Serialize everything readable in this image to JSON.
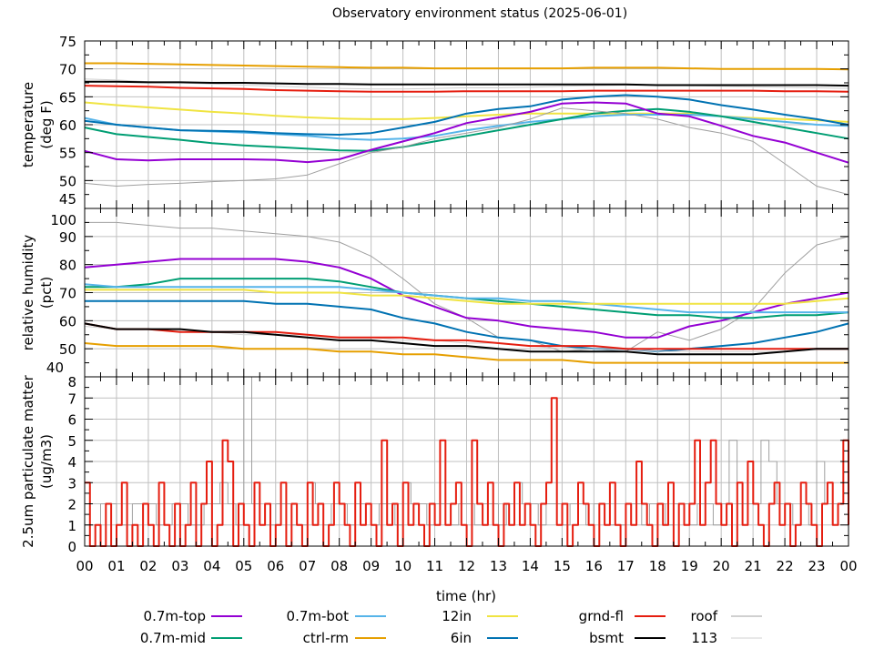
{
  "chart_data": [
    {
      "type": "line",
      "title": "Observatory environment status (2025-06-01)",
      "ylabel": [
        "temperature",
        "(deg F)"
      ],
      "ylim": [
        45,
        75
      ],
      "yticks": [
        45,
        50,
        55,
        60,
        65,
        70,
        75
      ],
      "grid": true,
      "x": [
        0,
        1,
        2,
        3,
        4,
        5,
        6,
        7,
        8,
        9,
        10,
        11,
        12,
        13,
        14,
        15,
        16,
        17,
        18,
        19,
        20,
        21,
        22,
        23,
        24
      ],
      "series": [
        {
          "name": "ctrl-rm",
          "color": "#e69f00",
          "values": [
            71,
            71,
            70.9,
            70.8,
            70.7,
            70.6,
            70.5,
            70.4,
            70.3,
            70.2,
            70.2,
            70.1,
            70.1,
            70.1,
            70.1,
            70.1,
            70.2,
            70.2,
            70.2,
            70.1,
            70,
            70,
            70,
            70,
            69.9
          ]
        },
        {
          "name": "113",
          "color": "#d0d0d0",
          "values": [
            68.2,
            68,
            67.7,
            67.5,
            67.3,
            67.1,
            66.9,
            66.7,
            66.5,
            66.4,
            66.4,
            66.5,
            66.6,
            66.6,
            66.7,
            66.9,
            67,
            67.1,
            67.1,
            67,
            66.9,
            66.8,
            66.7,
            66.6,
            66.5
          ]
        },
        {
          "name": "bsmt",
          "color": "#000000",
          "values": [
            67.7,
            67.7,
            67.6,
            67.6,
            67.5,
            67.5,
            67.4,
            67.3,
            67.3,
            67.2,
            67.2,
            67.2,
            67.2,
            67.2,
            67.2,
            67.2,
            67.2,
            67.2,
            67.1,
            67.1,
            67.1,
            67.1,
            67.1,
            67.1,
            67
          ]
        },
        {
          "name": "grnd-fl",
          "color": "#e51e10",
          "values": [
            67,
            66.9,
            66.8,
            66.6,
            66.5,
            66.4,
            66.2,
            66.1,
            66,
            65.9,
            65.9,
            65.9,
            66,
            66,
            66,
            66,
            66.1,
            66.1,
            66.1,
            66.1,
            66.1,
            66.1,
            66,
            66,
            65.9
          ]
        },
        {
          "name": "12in",
          "color": "#f0e442",
          "values": [
            64,
            63.5,
            63.1,
            62.7,
            62.3,
            62,
            61.6,
            61.3,
            61.1,
            61,
            61,
            61.2,
            61.5,
            61.8,
            62,
            62,
            62,
            62,
            62,
            62,
            61.5,
            61.2,
            61,
            60.8,
            60.5
          ]
        },
        {
          "name": "0.7m-bot",
          "color": "#56b4e9",
          "values": [
            61.2,
            60,
            59.5,
            59,
            58.8,
            58.6,
            58.3,
            58,
            57.5,
            57.3,
            57.5,
            58,
            59,
            59.8,
            60.5,
            61,
            61.5,
            61.8,
            61.8,
            61.8,
            61.5,
            61,
            60.5,
            60,
            59.8
          ]
        },
        {
          "name": "6in",
          "color": "#0072b2",
          "values": [
            60.7,
            60,
            59.5,
            59,
            58.9,
            58.8,
            58.5,
            58.3,
            58.2,
            58.5,
            59.5,
            60.5,
            62,
            62.8,
            63.3,
            64.5,
            65,
            65.3,
            65,
            64.5,
            63.5,
            62.7,
            61.8,
            61,
            60
          ]
        },
        {
          "name": "0.7m-mid",
          "color": "#009e73",
          "values": [
            59.5,
            58.3,
            57.8,
            57.3,
            56.7,
            56.3,
            56,
            55.7,
            55.4,
            55.3,
            56,
            57,
            58,
            59,
            60,
            61,
            62,
            62.5,
            62.8,
            62.3,
            61.5,
            60.5,
            59.5,
            58.5,
            57.5
          ]
        },
        {
          "name": "0.7m-top",
          "color": "#9400d3",
          "values": [
            55.3,
            53.8,
            53.6,
            53.8,
            53.8,
            53.8,
            53.7,
            53.3,
            53.8,
            55.5,
            57,
            58.5,
            60.3,
            61.3,
            62.3,
            63.8,
            64,
            63.8,
            62,
            61.5,
            59.8,
            58,
            56.8,
            55,
            53.2
          ]
        },
        {
          "name": "roof",
          "color": "#a0a0a0",
          "values": [
            49.5,
            49,
            49.3,
            49.5,
            49.8,
            50,
            50.3,
            51,
            53,
            55,
            56,
            57.5,
            58.5,
            59.5,
            61,
            63,
            62.5,
            62,
            61,
            59.5,
            58.5,
            57,
            53,
            49,
            47.5
          ]
        }
      ]
    },
    {
      "type": "line",
      "ylabel": [
        "relative humidity",
        "(pct)"
      ],
      "ylim": [
        40,
        100
      ],
      "yticks": [
        40,
        50,
        60,
        70,
        80,
        90,
        100
      ],
      "grid": true,
      "x": [
        0,
        1,
        2,
        3,
        4,
        5,
        6,
        7,
        8,
        9,
        10,
        11,
        12,
        13,
        14,
        15,
        16,
        17,
        18,
        19,
        20,
        21,
        22,
        23,
        24
      ],
      "series": [
        {
          "name": "roof",
          "color": "#a0a0a0",
          "values": [
            95,
            95,
            94,
            93,
            93,
            92,
            91,
            90,
            88,
            83,
            75,
            66,
            61,
            54,
            53,
            49,
            50,
            49,
            56,
            53,
            57,
            64,
            77,
            87,
            90
          ]
        },
        {
          "name": "0.7m-top",
          "color": "#9400d3",
          "values": [
            79,
            80,
            81,
            82,
            82,
            82,
            82,
            81,
            79,
            75,
            69,
            65,
            61,
            60,
            58,
            57,
            56,
            54,
            54,
            58,
            60,
            63,
            66,
            68,
            70
          ]
        },
        {
          "name": "0.7m-mid",
          "color": "#009e73",
          "values": [
            72,
            72,
            73,
            75,
            75,
            75,
            75,
            75,
            74,
            72,
            70,
            69,
            68,
            67,
            66,
            65,
            64,
            63,
            62,
            62,
            61,
            61,
            62,
            62,
            63
          ]
        },
        {
          "name": "0.7m-bot",
          "color": "#56b4e9",
          "values": [
            73,
            72,
            72,
            72,
            72,
            72,
            72,
            72,
            72,
            71,
            70,
            69,
            68,
            68,
            67,
            67,
            66,
            65,
            64,
            63,
            63,
            63,
            63,
            63,
            63
          ]
        },
        {
          "name": "12in",
          "color": "#f0e442",
          "values": [
            71,
            71,
            71,
            71,
            71,
            71,
            70,
            70,
            70,
            69,
            69,
            68,
            67,
            66,
            66,
            66,
            66,
            66,
            66,
            66,
            66,
            66,
            66,
            67,
            68
          ]
        },
        {
          "name": "6in",
          "color": "#0072b2",
          "values": [
            67,
            67,
            67,
            67,
            67,
            67,
            66,
            66,
            65,
            64,
            61,
            59,
            56,
            54,
            53,
            51,
            50,
            50,
            49,
            50,
            51,
            52,
            54,
            56,
            59
          ]
        },
        {
          "name": "113",
          "color": "#d0d0d0",
          "values": [
            58,
            57,
            57,
            56,
            56,
            55,
            55,
            55,
            54,
            54,
            53,
            53,
            52,
            52,
            51,
            50,
            50,
            50,
            49,
            49,
            49,
            49,
            49,
            50,
            50
          ]
        },
        {
          "name": "grnd-fl",
          "color": "#e51e10",
          "values": [
            59,
            57,
            57,
            56,
            56,
            56,
            56,
            55,
            54,
            54,
            54,
            53,
            53,
            52,
            51,
            51,
            51,
            50,
            50,
            50,
            50,
            50,
            50,
            50,
            50
          ]
        },
        {
          "name": "bsmt",
          "color": "#000000",
          "values": [
            59,
            57,
            57,
            57,
            56,
            56,
            55,
            54,
            53,
            53,
            52,
            51,
            51,
            50,
            49,
            49,
            49,
            49,
            48,
            48,
            48,
            48,
            49,
            50,
            50
          ]
        },
        {
          "name": "ctrl-rm",
          "color": "#e69f00",
          "values": [
            52,
            51,
            51,
            51,
            51,
            50,
            50,
            50,
            49,
            49,
            48,
            48,
            47,
            46,
            46,
            46,
            45,
            45,
            45,
            45,
            45,
            45,
            45,
            45,
            45
          ]
        }
      ]
    },
    {
      "type": "line",
      "ylabel": [
        "2.5um particulate matter",
        "(ug/m3)"
      ],
      "ylim": [
        0,
        8
      ],
      "yticks": [
        0,
        1,
        2,
        3,
        4,
        5,
        6,
        7,
        8
      ],
      "grid": true,
      "series": [
        {
          "name": "roof",
          "color": "#a0a0a0",
          "x_step_hr": 0.25,
          "values": [
            1,
            1,
            2,
            2,
            1,
            1,
            2,
            2,
            2,
            1,
            1,
            2,
            2,
            1,
            1,
            2,
            2,
            3,
            2,
            1,
            8,
            2,
            1,
            1,
            2,
            2,
            1,
            1,
            3,
            2,
            1,
            2,
            2,
            1,
            2,
            2,
            1,
            2,
            2,
            1,
            3,
            2,
            2,
            1,
            2,
            2,
            1,
            2,
            2,
            1,
            2,
            2,
            1,
            2,
            3,
            2,
            2,
            1,
            2,
            2,
            1,
            2,
            2,
            1,
            2,
            2,
            1,
            1,
            2,
            2,
            1,
            2,
            2,
            1,
            2,
            2,
            1,
            2,
            2,
            1,
            2,
            5,
            2,
            2,
            2,
            5,
            4,
            2,
            2,
            1,
            2,
            1,
            4,
            2,
            2,
            2,
            2
          ]
        },
        {
          "name": "grnd-fl",
          "color": "#e51e10",
          "x_step_hr": 0.1667,
          "values": [
            3,
            0,
            1,
            0,
            2,
            0,
            1,
            3,
            0,
            1,
            0,
            2,
            1,
            0,
            3,
            1,
            0,
            2,
            0,
            1,
            3,
            0,
            2,
            4,
            0,
            1,
            5,
            4,
            0,
            2,
            1,
            0,
            3,
            1,
            2,
            0,
            1,
            3,
            0,
            2,
            1,
            0,
            3,
            1,
            2,
            0,
            1,
            3,
            2,
            1,
            0,
            3,
            1,
            2,
            1,
            0,
            5,
            1,
            2,
            0,
            3,
            1,
            2,
            1,
            0,
            2,
            1,
            5,
            1,
            2,
            3,
            1,
            0,
            5,
            2,
            1,
            3,
            1,
            0,
            2,
            1,
            3,
            1,
            2,
            1,
            0,
            2,
            3,
            7,
            1,
            2,
            0,
            1,
            3,
            2,
            1,
            0,
            2,
            1,
            3,
            1,
            0,
            2,
            1,
            4,
            2,
            1,
            0,
            2,
            1,
            3,
            0,
            2,
            1,
            2,
            5,
            1,
            3,
            5,
            2,
            1,
            2,
            0,
            3,
            1,
            4,
            2,
            1,
            0,
            2,
            3,
            1,
            2,
            0,
            1,
            3,
            2,
            1,
            0,
            2,
            3,
            1,
            2,
            5,
            1
          ]
        }
      ]
    }
  ],
  "xaxis": {
    "label": "time (hr)",
    "xlim": [
      0,
      24
    ],
    "ticks": [
      "00",
      "01",
      "02",
      "03",
      "04",
      "05",
      "06",
      "07",
      "08",
      "09",
      "10",
      "11",
      "12",
      "13",
      "14",
      "15",
      "16",
      "17",
      "18",
      "19",
      "20",
      "21",
      "22",
      "23",
      "00"
    ]
  },
  "legend": {
    "placement": "bottom",
    "items": [
      {
        "name": "0.7m-top",
        "color": "#9400d3"
      },
      {
        "name": "0.7m-bot",
        "color": "#56b4e9"
      },
      {
        "name": "12in",
        "color": "#f0e442"
      },
      {
        "name": "grnd-fl",
        "color": "#e51e10"
      },
      {
        "name": "roof",
        "color": "#a0a0a0"
      },
      {
        "name": "0.7m-mid",
        "color": "#009e73"
      },
      {
        "name": "ctrl-rm",
        "color": "#e69f00"
      },
      {
        "name": "6in",
        "color": "#0072b2"
      },
      {
        "name": "bsmt",
        "color": "#000000"
      },
      {
        "name": "113",
        "color": "#d0d0d0"
      }
    ]
  }
}
